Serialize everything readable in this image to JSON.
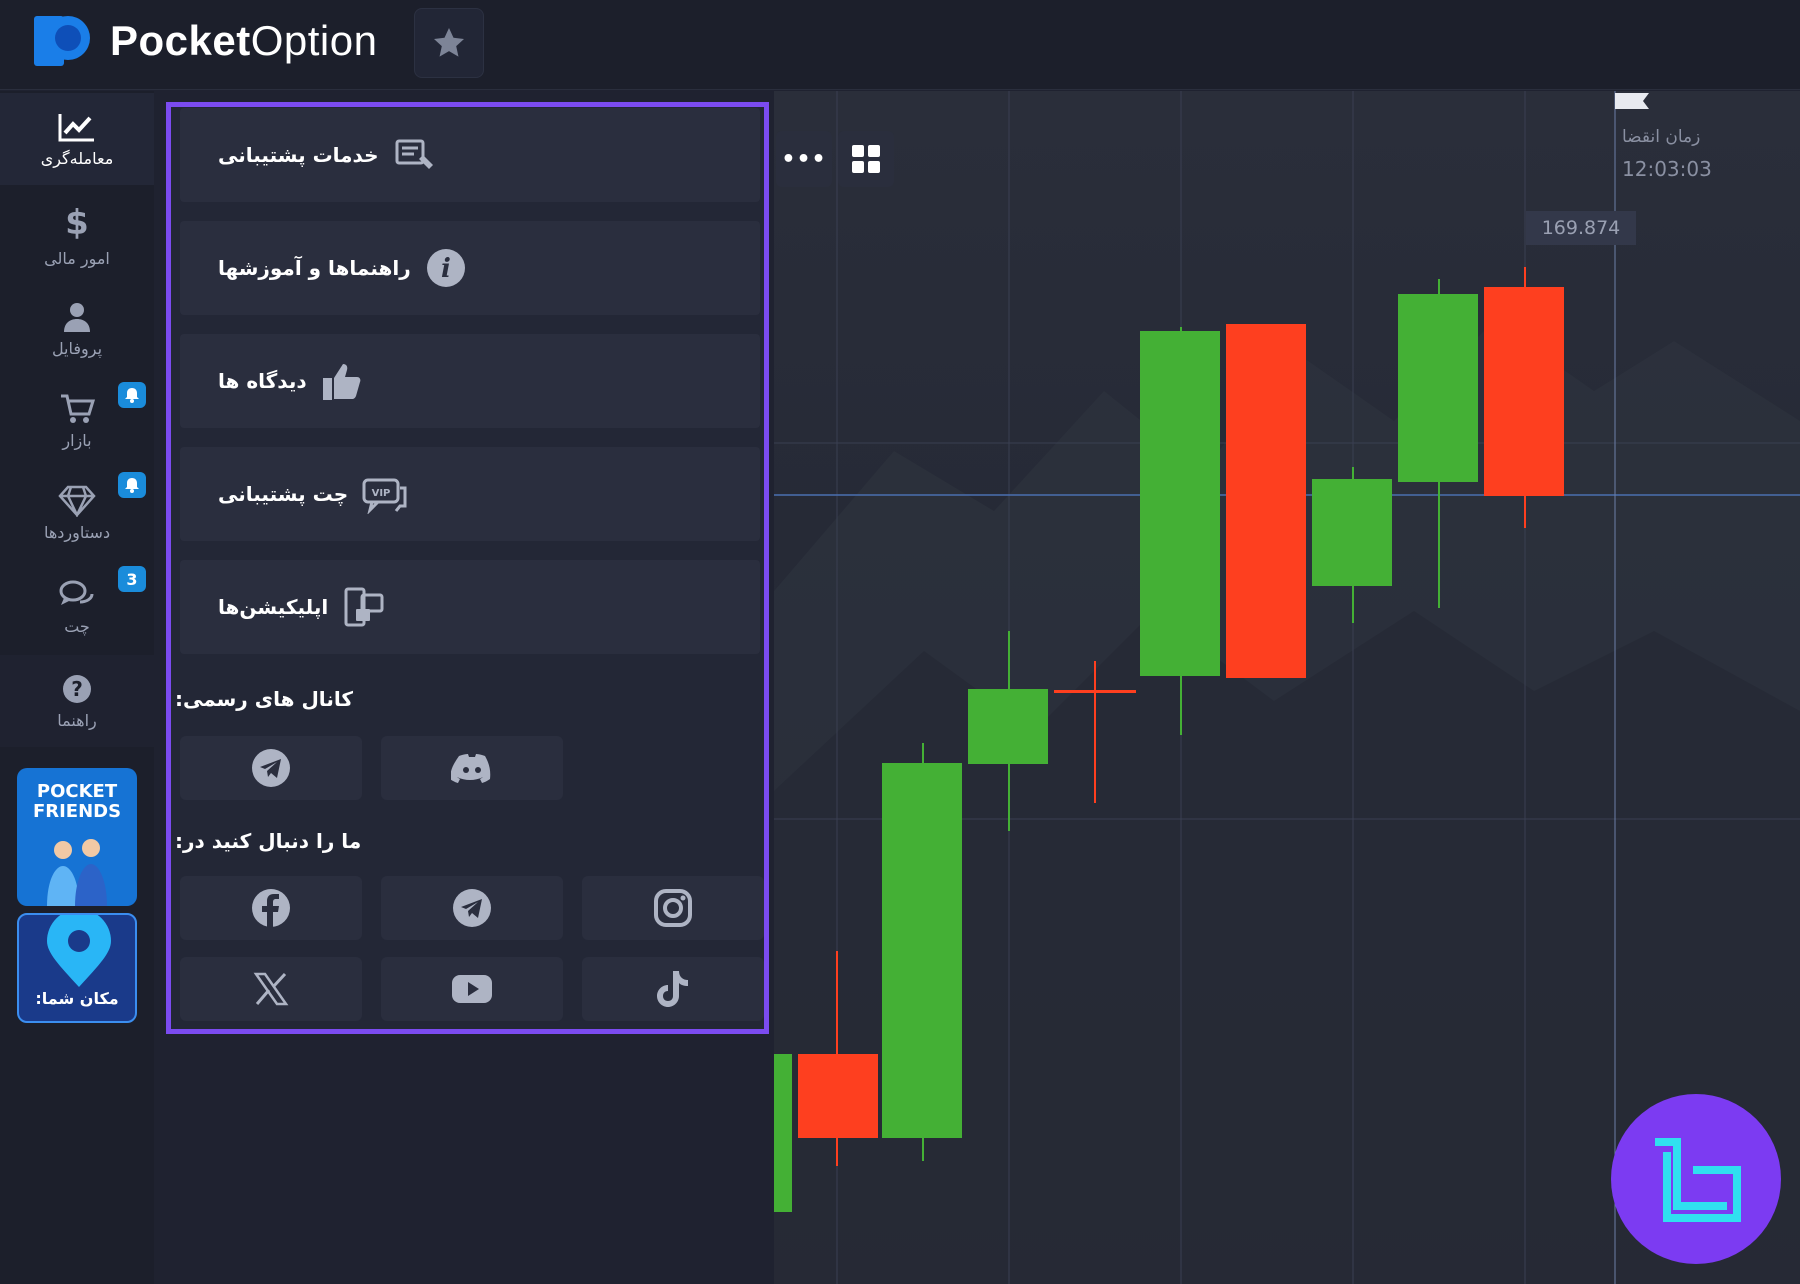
{
  "app": {
    "brand_bold": "Pocket",
    "brand_light": "Option"
  },
  "nav": {
    "items": [
      {
        "label": "معامله‌گری",
        "icon": "chart-line-icon"
      },
      {
        "label": "امور مالی",
        "icon": "dollar-icon"
      },
      {
        "label": "پروفایل",
        "icon": "user-icon"
      },
      {
        "label": "بازار",
        "icon": "cart-icon"
      },
      {
        "label": "دستاوردها",
        "icon": "diamond-icon"
      },
      {
        "label": "چت",
        "icon": "chat-icon",
        "badge": "3"
      },
      {
        "label": "راهنما",
        "icon": "help-icon"
      }
    ],
    "promo_friends": "POCKET FRIENDS",
    "promo_location": "مکان شما:"
  },
  "panel": {
    "items": [
      {
        "label": "خدمات پشتیبانی",
        "icon": "support-service-icon"
      },
      {
        "label": "راهنماها و آموزشها",
        "icon": "info-icon"
      },
      {
        "label": "دیدگاه ها",
        "icon": "thumbs-up-icon"
      },
      {
        "label": "چت پشتیبانی",
        "icon": "vip-chat-icon"
      },
      {
        "label": "اپلیکیشن‌ها",
        "icon": "apps-icon"
      }
    ],
    "official_channels_title": "کانال های رسمی:",
    "follow_us_title": "ما را دنبال کنید در:"
  },
  "chart": {
    "expiry_label": "زمان انقضا",
    "expiry_time": "12:03:03",
    "price_tag": "169.874",
    "colors": {
      "up": "#44b035",
      "down": "#fe3f1f",
      "accent": "#7b4bf0"
    }
  }
}
